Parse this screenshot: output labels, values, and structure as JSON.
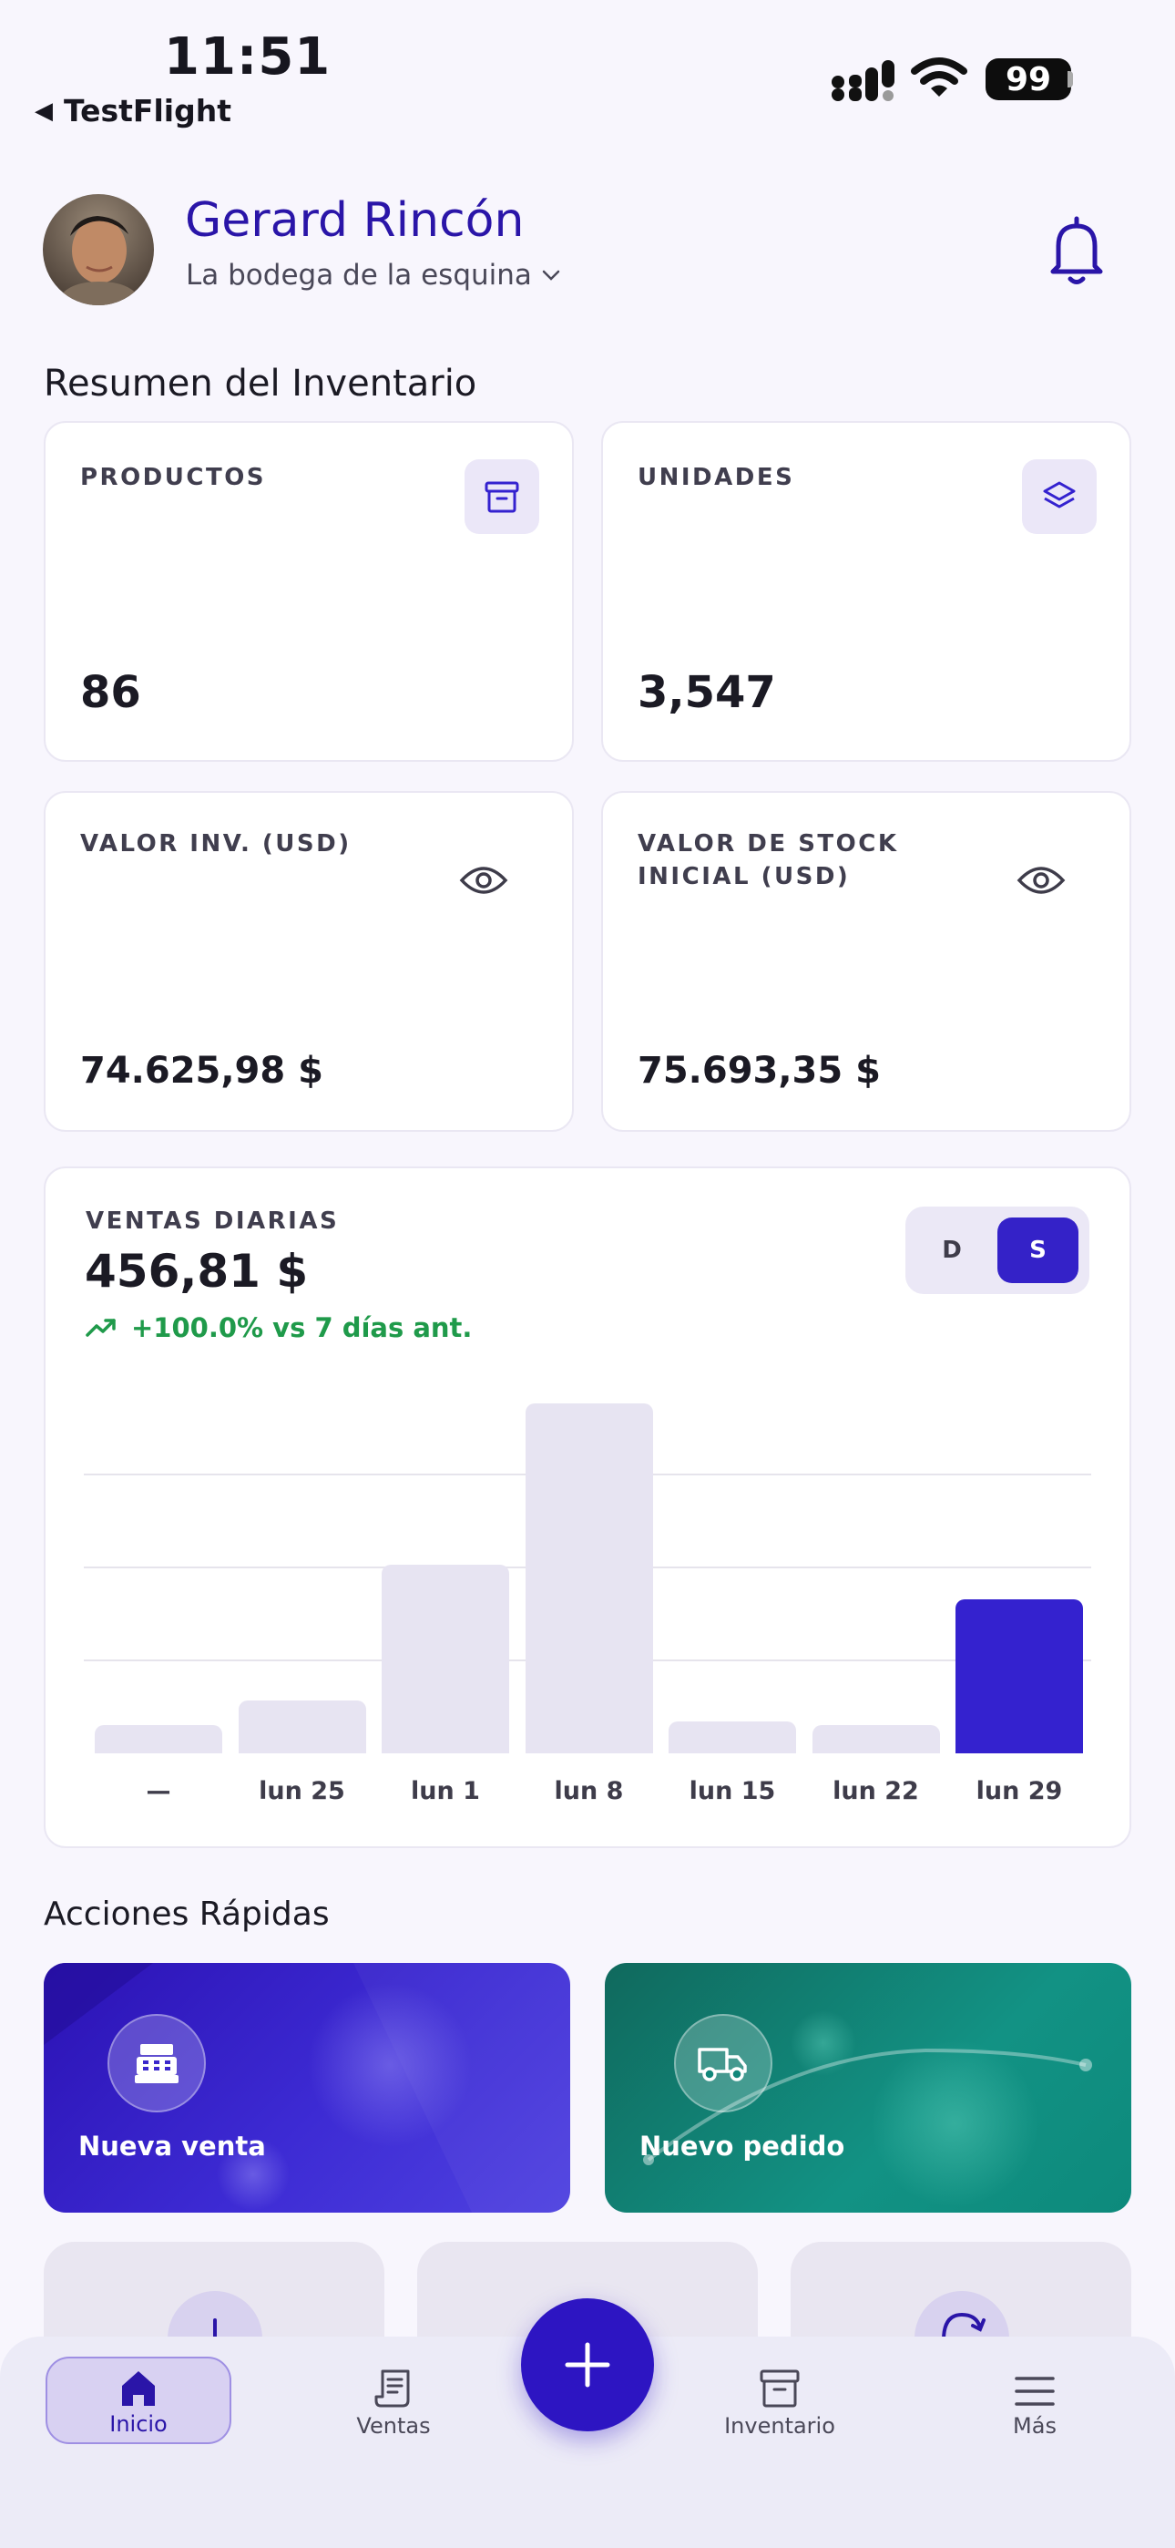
{
  "status_bar": {
    "time": "11:51",
    "back_label": "TestFlight",
    "battery": "99"
  },
  "header": {
    "user_name": "Gerard Rincón",
    "store": "La bodega de la esquina"
  },
  "inventory": {
    "title": "Resumen del Inventario",
    "cards": [
      {
        "label": "PRODUCTOS",
        "value": "86",
        "icon": "archive-box-icon"
      },
      {
        "label": "UNIDADES",
        "value": "3,547",
        "icon": "layers-icon"
      },
      {
        "label": "VALOR INV. (USD)",
        "value": "74.625,98 $",
        "icon": "eye-icon"
      },
      {
        "label": "VALOR DE STOCK INICIAL (USD)",
        "value": "75.693,35 $",
        "icon": "eye-icon"
      }
    ]
  },
  "sales": {
    "label": "VENTAS DIARIAS",
    "value": "456,81 $",
    "trend": "+100.0% vs 7 días ant.",
    "toggle": {
      "d": "D",
      "s": "S",
      "selected": "S"
    }
  },
  "chart_data": {
    "type": "bar",
    "categories": [
      "—",
      "lun 25",
      "lun 1",
      "lun 8",
      "lun 15",
      "lun 22",
      "lun 29"
    ],
    "values": [
      8,
      15,
      54,
      100,
      9,
      8,
      44
    ],
    "highlighted_index": 6,
    "colors": {
      "bar": "#e7e4f2",
      "active": "#3422cf"
    }
  },
  "quick_actions": {
    "title": "Acciones Rápidas",
    "items": [
      {
        "label": "Nueva venta",
        "icon": "cash-register-icon",
        "color": "#3422cf"
      },
      {
        "label": "Nuevo pedido",
        "icon": "truck-icon",
        "color": "#12877a"
      }
    ]
  },
  "nav": {
    "items": [
      {
        "label": "Inicio",
        "icon": "home-icon",
        "active": true
      },
      {
        "label": "Ventas",
        "icon": "receipt-icon",
        "active": false
      },
      {
        "label": "Inventario",
        "icon": "archive-box-icon",
        "active": false
      },
      {
        "label": "Más",
        "icon": "menu-icon",
        "active": false
      }
    ],
    "fab_icon": "plus-icon"
  },
  "colors": {
    "brand": "#2a15a8",
    "accent": "#3422cf",
    "positive": "#1f9a4a",
    "background": "#f8f6fd"
  }
}
